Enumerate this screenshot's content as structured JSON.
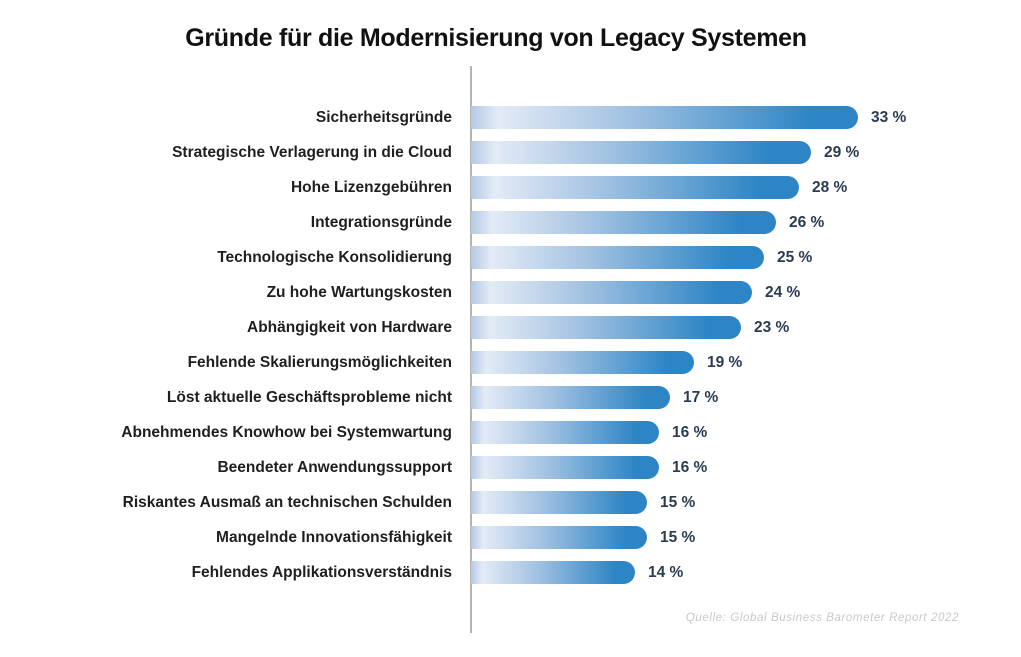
{
  "title": "Gründe für die Modernisierung von Legacy Systemen",
  "source": "Quelle: Global Business Barometer Report 2022",
  "chart_data": {
    "type": "bar",
    "orientation": "horizontal",
    "title": "Gründe für die Modernisierung von Legacy Systemen",
    "xlabel": "",
    "ylabel": "",
    "xlim": [
      0,
      33
    ],
    "grid": false,
    "legend": false,
    "value_suffix": " %",
    "categories": [
      "Sicherheitsgründe",
      "Strategische Verlagerung in die Cloud",
      "Hohe Lizenzgebühren",
      "Integrationsgründe",
      "Technologische Konsolidierung",
      "Zu hohe Wartungskosten",
      "Abhängigkeit von Hardware",
      "Fehlende Skalierungsmöglichkeiten",
      "Löst aktuelle Geschäftsprobleme nicht",
      "Abnehmendes Knowhow bei Systemwartung",
      "Beendeter Anwendungssupport",
      "Riskantes Ausmaß an technischen Schulden",
      "Mangelnde Innovationsfähigkeit",
      "Fehlendes Applikationsverständnis"
    ],
    "values": [
      33,
      29,
      28,
      26,
      25,
      24,
      23,
      19,
      17,
      16,
      16,
      15,
      15,
      14
    ],
    "value_labels": [
      "33 %",
      "29 %",
      "28 %",
      "26 %",
      "25 %",
      "24 %",
      "23 %",
      "19 %",
      "17 %",
      "16 %",
      "16 %",
      "15 %",
      "15 %",
      "14 %"
    ],
    "source": "Quelle: Global Business Barometer Report 2022",
    "colors": {
      "background": "#ffffff",
      "title_text": "#111111",
      "label_text": "#1f1f1f",
      "value_text": "#2b3c52",
      "axis_line": "#b3b3b3",
      "source_text": "#c9c9c9",
      "bar_gradient_left_edge": "#b4c9e5",
      "bar_gradient_light": "#e3ebf6",
      "bar_gradient_mid": "#a3c2e2",
      "bar_gradient_end": "#2d85c5"
    }
  }
}
